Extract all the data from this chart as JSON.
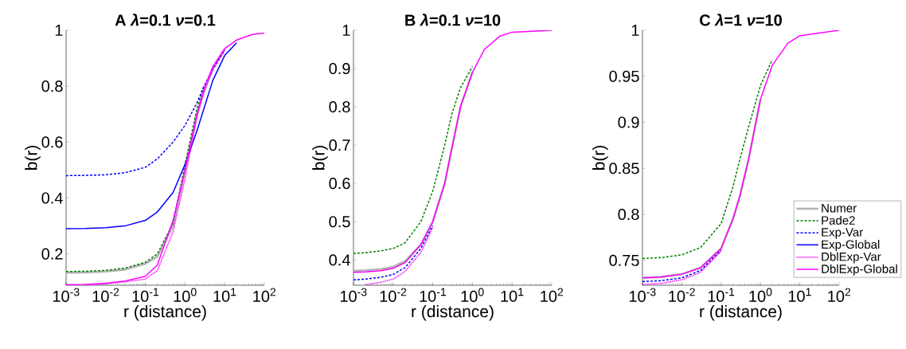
{
  "chart_data": [
    {
      "type": "line",
      "title": "A    *λ*=0.1 *ν*=0.1",
      "xlabel": "r (distance)",
      "ylabel": "b(r)",
      "log": "x",
      "xlim": [
        0.001,
        100
      ],
      "ylim": [
        0.088,
        1
      ],
      "xticks": [
        {
          "value": 0.001,
          "label": "10$^{-3}$"
        },
        {
          "value": 0.01,
          "label": "10$^{-2}$"
        },
        {
          "value": 0.1,
          "label": "10$^{-1}$"
        },
        {
          "value": 1,
          "label": "10$^{0}$"
        },
        {
          "value": 10,
          "label": "10$^{1}$"
        },
        {
          "value": 100,
          "label": "10$^{2}$"
        }
      ],
      "yticks": [
        0.2,
        0.4,
        0.6,
        0.8,
        1
      ],
      "x": [
        0.001,
        0.003,
        0.01,
        0.03,
        0.1,
        0.2,
        0.5,
        1,
        2,
        3,
        5,
        10,
        20,
        50,
        100
      ],
      "series": [
        {
          "color": "#b3b3b3",
          "line_style": "solid",
          "values": [
            0.133,
            0.134,
            0.137,
            0.144,
            0.165,
            0.19,
            0.3,
            0.5,
            0.7,
            0.78,
            0.86,
            0.93,
            null,
            null,
            null
          ]
        },
        {
          "color": "#008000",
          "line_style": "dashed",
          "values": [
            0.137,
            0.138,
            0.141,
            0.149,
            0.17,
            0.2,
            0.31,
            0.52,
            0.72,
            0.8,
            null,
            null,
            null,
            null,
            null
          ]
        },
        {
          "color": "#0000ff",
          "line_style": "dashed",
          "values": [
            0.48,
            0.481,
            0.483,
            0.49,
            0.51,
            0.54,
            0.6,
            0.66,
            0.74,
            0.8,
            0.86,
            0.93,
            null,
            null,
            null
          ]
        },
        {
          "color": "#0000ff",
          "line_style": "solid",
          "values": [
            0.29,
            0.291,
            0.294,
            0.3,
            0.32,
            0.35,
            0.42,
            0.52,
            0.64,
            0.72,
            0.82,
            0.91,
            0.955,
            null,
            null
          ]
        },
        {
          "color": "#ff00ff",
          "line_style": "dotted",
          "values": [
            null,
            0.09,
            0.093,
            0.1,
            0.11,
            0.14,
            0.28,
            0.47,
            0.69,
            0.78,
            0.86,
            0.93,
            null,
            null,
            null
          ]
        },
        {
          "color": "#ff00ff",
          "line_style": "solid",
          "values": [
            0.09,
            0.091,
            0.095,
            0.103,
            0.12,
            0.16,
            0.32,
            0.5,
            0.7,
            0.79,
            0.87,
            0.935,
            0.965,
            0.985,
            0.99
          ]
        }
      ]
    },
    {
      "type": "line",
      "title": "B    *λ*=0.1 *ν*=10",
      "xlabel": "r (distance)",
      "ylabel": "b(r)",
      "log": "x",
      "xlim": [
        0.001,
        100
      ],
      "ylim": [
        0.334,
        1
      ],
      "xticks": [
        {
          "value": 0.001,
          "label": "10$^{-3}$"
        },
        {
          "value": 0.01,
          "label": "10$^{-2}$"
        },
        {
          "value": 0.1,
          "label": "10$^{-1}$"
        },
        {
          "value": 1,
          "label": "10$^{0}$"
        },
        {
          "value": 10,
          "label": "10$^{1}$"
        },
        {
          "value": 100,
          "label": "10$^{2}$"
        }
      ],
      "yticks": [
        0.4,
        0.5,
        0.6,
        0.7,
        0.8,
        0.9,
        1
      ],
      "x": [
        0.001,
        0.002,
        0.005,
        0.01,
        0.02,
        0.05,
        0.1,
        0.2,
        0.3,
        0.5,
        1,
        2,
        5,
        10,
        100
      ],
      "series": [
        {
          "color": "#b3b3b3",
          "line_style": "solid",
          "values": [
            0.372,
            0.373,
            0.376,
            0.382,
            0.397,
            0.44,
            0.5,
            0.6,
            0.69,
            0.8,
            0.89,
            null,
            null,
            null,
            null
          ]
        },
        {
          "color": "#008000",
          "line_style": "dashed",
          "values": [
            0.417,
            0.419,
            0.424,
            0.43,
            0.445,
            0.5,
            0.58,
            0.7,
            0.78,
            0.85,
            0.905,
            null,
            null,
            null,
            null
          ]
        },
        {
          "color": "#0000ff",
          "line_style": "dashed",
          "values": [
            0.348,
            0.35,
            0.355,
            0.362,
            0.38,
            0.43,
            0.49,
            null,
            null,
            null,
            null,
            null,
            null,
            null,
            null
          ]
        },
        {
          "color": "#0000ff",
          "line_style": "solid",
          "values": [
            null,
            null,
            null,
            null,
            null,
            null,
            null,
            null,
            null,
            null,
            null,
            null,
            null,
            null,
            null
          ]
        },
        {
          "color": "#ff00ff",
          "line_style": "dotted",
          "values": [
            null,
            0.335,
            0.342,
            0.35,
            0.37,
            0.42,
            0.485,
            null,
            null,
            null,
            null,
            null,
            null,
            null,
            null
          ]
        },
        {
          "color": "#ff00ff",
          "line_style": "solid",
          "values": [
            0.368,
            0.369,
            0.372,
            0.378,
            0.393,
            0.44,
            0.5,
            0.6,
            0.69,
            0.8,
            0.89,
            0.95,
            0.985,
            0.995,
            1
          ]
        }
      ]
    },
    {
      "type": "line",
      "title": "C    *λ*=1 *ν*=10",
      "xlabel": "r (distance)",
      "ylabel": "b(r)",
      "log": "x",
      "xlim": [
        0.001,
        100
      ],
      "ylim": [
        0.723,
        1
      ],
      "legend": "bottom right",
      "xticks": [
        {
          "value": 0.001,
          "label": "10$^{-3}$"
        },
        {
          "value": 0.01,
          "label": "10$^{-2}$"
        },
        {
          "value": 0.1,
          "label": "10$^{-1}$"
        },
        {
          "value": 1,
          "label": "10$^{0}$"
        },
        {
          "value": 10,
          "label": "10$^{1}$"
        },
        {
          "value": 100,
          "label": "10$^{2}$"
        }
      ],
      "yticks": [
        0.75,
        0.8,
        0.85,
        0.9,
        0.95,
        1
      ],
      "x": [
        0.001,
        0.003,
        0.01,
        0.03,
        0.1,
        0.2,
        0.3,
        0.5,
        1,
        2,
        5,
        10,
        100
      ],
      "series": [
        {
          "name": "Numer",
          "color": "#b3b3b3",
          "line_style": "solid",
          "values": [
            0.731,
            0.732,
            0.735,
            0.742,
            0.763,
            0.795,
            0.82,
            0.86,
            0.925,
            null,
            null,
            null,
            null
          ]
        },
        {
          "name": "Pade2",
          "color": "#008000",
          "line_style": "dashed",
          "values": [
            0.752,
            0.753,
            0.756,
            0.764,
            0.79,
            0.83,
            0.86,
            0.895,
            0.94,
            0.968,
            null,
            null,
            null
          ]
        },
        {
          "name": "Exp-Var",
          "color": "#0000ff",
          "line_style": "dashed",
          "values": [
            0.727,
            0.728,
            0.731,
            0.739,
            0.761,
            null,
            null,
            null,
            null,
            null,
            null,
            null,
            null
          ]
        },
        {
          "name": "Exp-Global",
          "color": "#0000ff",
          "line_style": "solid",
          "values": [
            null,
            null,
            null,
            null,
            null,
            null,
            null,
            null,
            null,
            null,
            null,
            null,
            null
          ]
        },
        {
          "name": "DblExp-Var",
          "color": "#ff00ff",
          "line_style": "dotted",
          "values": [
            0.724,
            0.725,
            0.729,
            0.737,
            0.76,
            null,
            null,
            null,
            null,
            null,
            null,
            null,
            null
          ]
        },
        {
          "name": "DblExp-Global",
          "color": "#ff00ff",
          "line_style": "solid",
          "values": [
            0.731,
            0.732,
            0.735,
            0.742,
            0.763,
            0.795,
            0.82,
            0.86,
            0.925,
            0.962,
            0.986,
            0.994,
            1
          ]
        }
      ]
    }
  ]
}
